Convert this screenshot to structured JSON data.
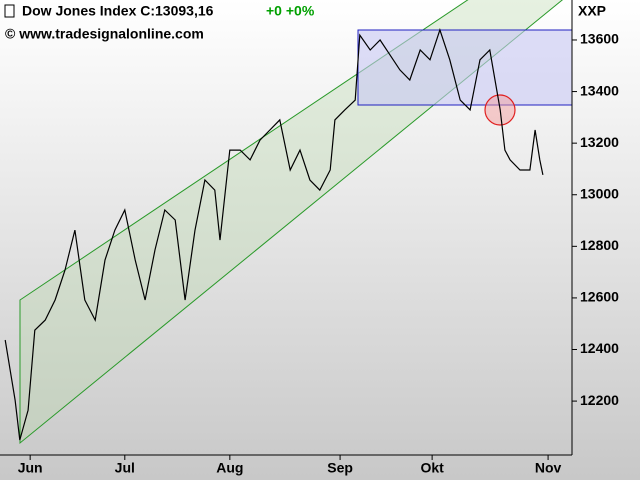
{
  "chart_data": {
    "type": "line",
    "title": "Dow Jones Index C:13093,16",
    "change": "+0 +0%",
    "subtitle": "© www.tradesignalonline.com",
    "axis_label": "XXP",
    "series": [
      {
        "name": "Dow Jones Index",
        "color": "#000000",
        "x": [
          1.0,
          2.9,
          3.8,
          5.4,
          6.7,
          8.7,
          10.6,
          12.5,
          14.4,
          16.3,
          18.3,
          20.2,
          22.1,
          24.0,
          26.0,
          27.9,
          29.8,
          31.7,
          33.7,
          35.6,
          37.5,
          39.4,
          41.3,
          42.3,
          44.2,
          46.2,
          48.1,
          50.0,
          51.9,
          53.8,
          55.8,
          57.7,
          59.6,
          61.5,
          63.5,
          64.4,
          66.3,
          68.3,
          69.2,
          71.2,
          73.1,
          75.0,
          76.9,
          78.8,
          80.8,
          82.7,
          84.6,
          86.5,
          88.5,
          90.4,
          92.3,
          94.2,
          95.2,
          96.2,
          97.1,
          98.1,
          100.0,
          101.9,
          102.9,
          103.8,
          104.4
        ],
        "values": [
          12437,
          12204,
          12049,
          12165,
          12475,
          12514,
          12592,
          12708,
          12863,
          12592,
          12514,
          12747,
          12863,
          12941,
          12747,
          12592,
          12786,
          12941,
          12902,
          12592,
          12863,
          13057,
          13018,
          12824,
          13173,
          13173,
          13135,
          13212,
          13251,
          13290,
          13096,
          13173,
          13057,
          13018,
          13096,
          13290,
          13329,
          13367,
          13619,
          13561,
          13600,
          13542,
          13484,
          13445,
          13561,
          13523,
          13639,
          13523,
          13367,
          13329,
          13523,
          13561,
          13445,
          13329,
          13173,
          13135,
          13096,
          13096,
          13251,
          13135,
          13077
        ]
      }
    ],
    "xlim": [
      0,
      110
    ],
    "xticks": [
      {
        "value": 5.8,
        "label": "Jun"
      },
      {
        "value": 24.0,
        "label": "Jul"
      },
      {
        "value": 44.2,
        "label": "Aug"
      },
      {
        "value": 65.4,
        "label": "Sep"
      },
      {
        "value": 83.1,
        "label": "Okt"
      },
      {
        "value": 105.4,
        "label": "Nov"
      }
    ],
    "ylim": [
      11991,
      13755
    ],
    "yticks": [
      12200,
      12400,
      12600,
      12800,
      13000,
      13200,
      13400,
      13600
    ]
  }
}
